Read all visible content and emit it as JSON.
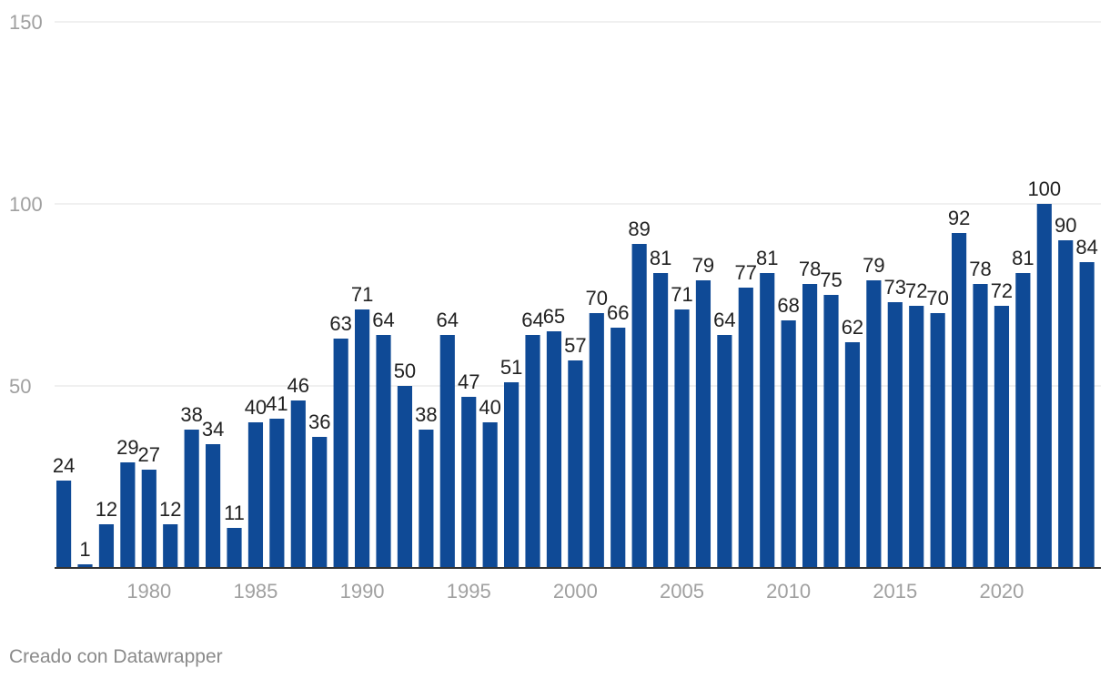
{
  "chart_data": {
    "type": "bar",
    "title": "",
    "xlabel": "",
    "ylabel": "",
    "ylim": [
      0,
      150
    ],
    "y_ticks": [
      50,
      100,
      150
    ],
    "x_ticks": [
      1980,
      1985,
      1990,
      1995,
      2000,
      2005,
      2010,
      2015,
      2020
    ],
    "categories": [
      1976,
      1977,
      1978,
      1979,
      1980,
      1981,
      1982,
      1983,
      1984,
      1985,
      1986,
      1987,
      1988,
      1989,
      1990,
      1991,
      1992,
      1993,
      1994,
      1995,
      1996,
      1997,
      1998,
      1999,
      2000,
      2001,
      2002,
      2003,
      2004,
      2005,
      2006,
      2007,
      2008,
      2009,
      2010,
      2011,
      2012,
      2013,
      2014,
      2015,
      2016,
      2017,
      2018,
      2019,
      2020,
      2021,
      2022,
      2023,
      2024
    ],
    "values": [
      24,
      1,
      12,
      29,
      27,
      12,
      38,
      34,
      11,
      40,
      41,
      46,
      36,
      63,
      71,
      64,
      50,
      38,
      64,
      47,
      40,
      51,
      64,
      65,
      57,
      70,
      66,
      89,
      81,
      71,
      79,
      64,
      77,
      81,
      68,
      78,
      75,
      62,
      79,
      73,
      72,
      70,
      92,
      78,
      72,
      81,
      100,
      90,
      84
    ],
    "bar_color": "#0f4a96",
    "grid": true
  },
  "footer": {
    "credit": "Creado con Datawrapper"
  }
}
